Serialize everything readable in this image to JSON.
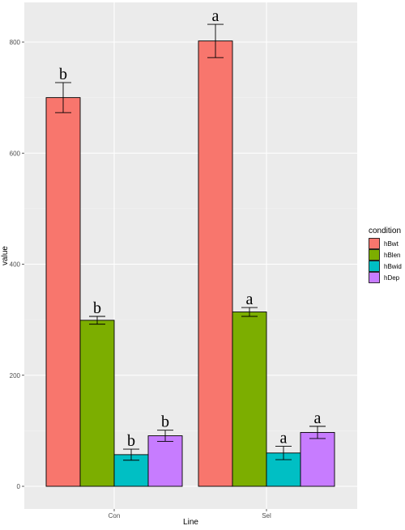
{
  "chart_data": {
    "type": "bar",
    "xlabel": "Line",
    "ylabel": "value",
    "categories": [
      "Con",
      "Sel"
    ],
    "ylim": [
      -40,
      880
    ],
    "yticks": [
      0,
      200,
      400,
      600,
      800
    ],
    "legend": {
      "title": "condition",
      "position": "right"
    },
    "grid": true,
    "series": [
      {
        "name": "hBwt",
        "color": "#F8766D",
        "values": [
          700,
          802
        ],
        "errors": [
          27,
          30
        ],
        "labels": [
          "b",
          "a"
        ]
      },
      {
        "name": "hBlen",
        "color": "#7CAE00",
        "values": [
          299,
          314
        ],
        "errors": [
          7,
          8
        ],
        "labels": [
          "b",
          "a"
        ]
      },
      {
        "name": "hBwid",
        "color": "#00BFC4",
        "values": [
          57,
          60
        ],
        "errors": [
          10,
          12
        ],
        "labels": [
          "b",
          "a"
        ]
      },
      {
        "name": "hDep",
        "color": "#C77CFF",
        "values": [
          91,
          97
        ],
        "errors": [
          10,
          11
        ],
        "labels": [
          "b",
          "a"
        ]
      }
    ]
  }
}
